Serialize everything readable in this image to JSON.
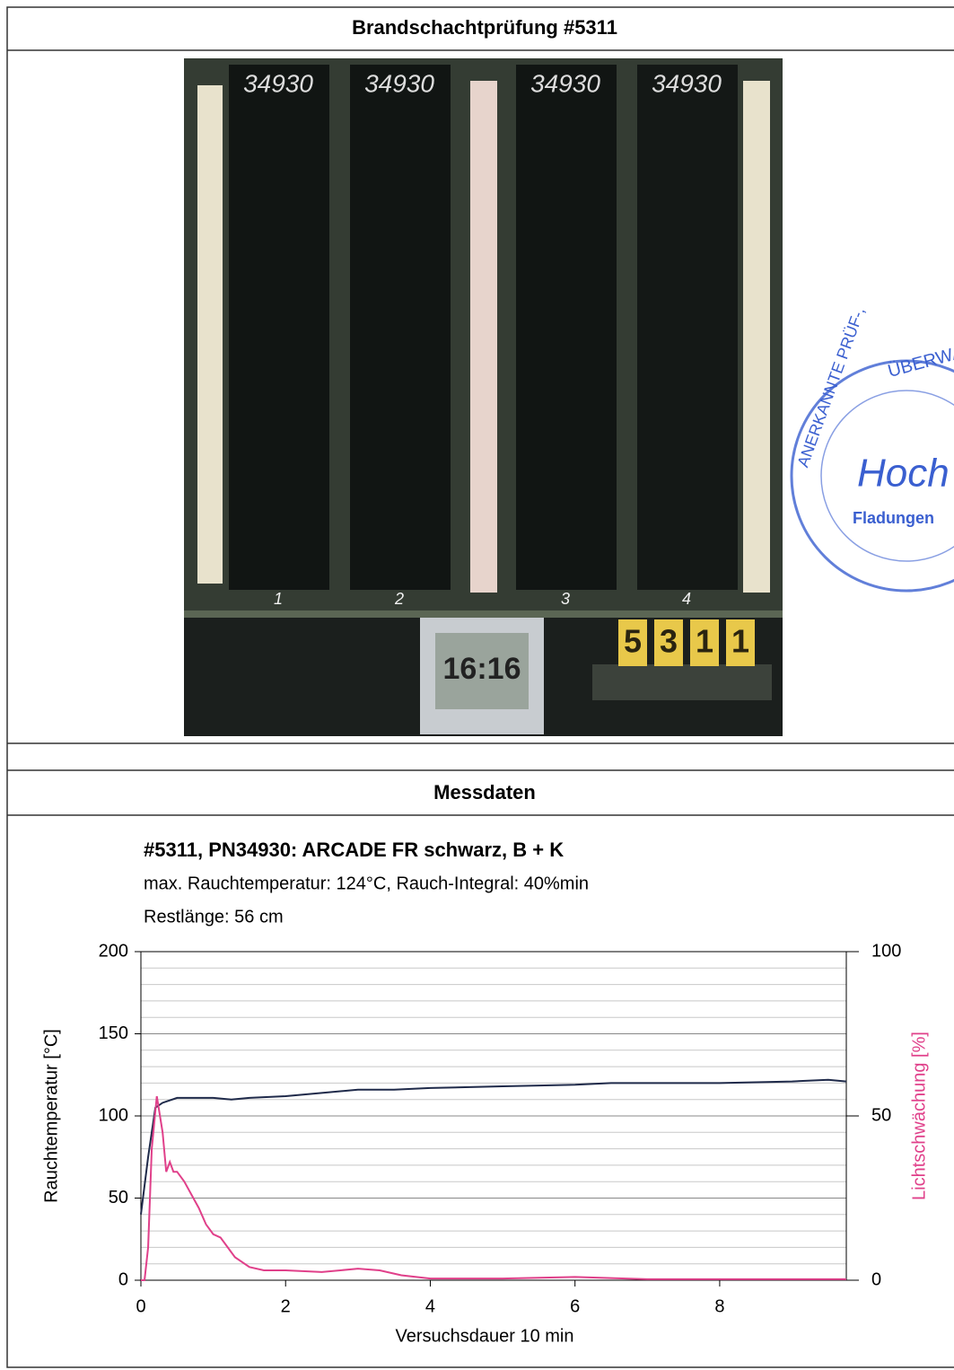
{
  "header": {
    "title": "Brandschachtprüfung #5311"
  },
  "photo": {
    "sample_labels": [
      "34930",
      "34930",
      "34930",
      "34930"
    ],
    "slot_numbers": [
      "1",
      "2",
      "3",
      "4"
    ],
    "test_number": [
      "5",
      "3",
      "1",
      "1"
    ],
    "clock": "16:16",
    "stamp": {
      "top": "ÜBERWACHUNGS",
      "left": "ANERKANNTE PRÜF-,",
      "center": "Hoch",
      "bottom": "Fladungen"
    }
  },
  "section": {
    "title": "Messdaten"
  },
  "chart_data": {
    "type": "line",
    "title": "#5311, PN34930: ARCADE FR schwarz, B + K",
    "subtitle": [
      "max. Rauchtemperatur: 124°C, Rauch-Integral: 40%min",
      "Restlänge: 56 cm"
    ],
    "x_label": "Versuchsdauer 10 min",
    "y_label": "Rauchtemperatur [°C]",
    "y2_label": "Lichtschwächung [%]",
    "xlim": [
      0,
      9.75
    ],
    "xticks": [
      0,
      2,
      4,
      6,
      8
    ],
    "ylim": [
      0,
      200
    ],
    "yticks": [
      0,
      50,
      100,
      150,
      200
    ],
    "y_minor_ticks": [
      10,
      20,
      30,
      40,
      60,
      70,
      80,
      90,
      110,
      120,
      130,
      140,
      160,
      170,
      180,
      190
    ],
    "y2lim": [
      0,
      100
    ],
    "y2ticks": [
      0,
      50,
      100
    ],
    "grid": true,
    "series": [
      {
        "name": "Rauchtemperatur",
        "color": "#1f2a4a",
        "x": [
          0,
          0.1,
          0.2,
          0.3,
          0.5,
          1,
          1.25,
          1.5,
          2,
          2.5,
          3,
          3.5,
          4,
          5,
          6,
          6.5,
          7,
          8,
          9,
          9.5,
          9.75
        ],
        "values": [
          40,
          75,
          105,
          108,
          111,
          111,
          110,
          111,
          112,
          114,
          116,
          116,
          117,
          118,
          119,
          120,
          120,
          120,
          121,
          122,
          121
        ]
      },
      {
        "name": "Lichtschwächung",
        "color": "#e0408a",
        "axis": "y2",
        "x": [
          0,
          0.05,
          0.1,
          0.15,
          0.22,
          0.3,
          0.35,
          0.4,
          0.45,
          0.5,
          0.6,
          0.7,
          0.8,
          0.9,
          1.0,
          1.1,
          1.2,
          1.3,
          1.5,
          1.7,
          2,
          2.5,
          3,
          3.3,
          3.6,
          4,
          5,
          6,
          7,
          8,
          9,
          9.75
        ],
        "values": [
          0,
          0,
          10,
          40,
          56,
          45,
          33,
          36,
          33,
          33,
          30,
          26,
          22,
          17,
          14,
          13,
          10,
          7,
          4,
          3,
          3,
          2.5,
          3.5,
          3,
          1.5,
          0.5,
          0.5,
          1,
          0.3,
          0.3,
          0.3,
          0.3
        ]
      }
    ]
  }
}
